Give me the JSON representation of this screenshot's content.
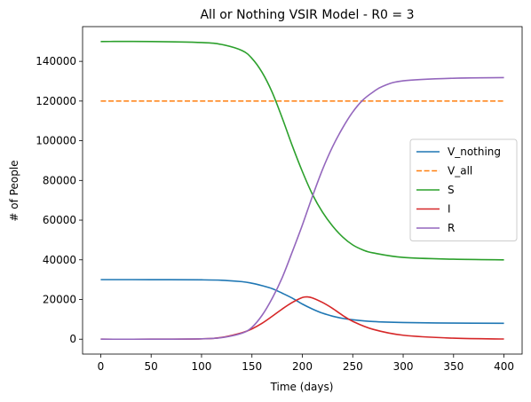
{
  "chart_data": {
    "type": "line",
    "title": "All or Nothing VSIR Model - R0 = 3",
    "xlabel": "Time (days)",
    "ylabel": "# of People",
    "xlim": [
      -18,
      418
    ],
    "ylim": [
      -7500,
      157500
    ],
    "xticks": [
      0,
      50,
      100,
      150,
      200,
      250,
      300,
      350,
      400
    ],
    "yticks": [
      0,
      20000,
      40000,
      60000,
      80000,
      100000,
      120000,
      140000
    ],
    "grid": false,
    "legend": "center-right",
    "series": [
      {
        "name": "V_nothing",
        "color": "#1f77b4",
        "dash": "solid",
        "x": [
          0,
          50,
          100,
          120,
          140,
          150,
          160,
          170,
          180,
          190,
          200,
          210,
          220,
          230,
          240,
          250,
          270,
          300,
          350,
          400
        ],
        "y": [
          30000,
          30000,
          29900,
          29700,
          29000,
          28200,
          27000,
          25500,
          23200,
          20700,
          17700,
          15200,
          13100,
          11600,
          10500,
          9800,
          8900,
          8400,
          8100,
          8000
        ]
      },
      {
        "name": "V_all",
        "color": "#ff7f0e",
        "dash": "dashed",
        "x": [
          0,
          400
        ],
        "y": [
          120000,
          120000
        ]
      },
      {
        "name": "S",
        "color": "#2ca02c",
        "dash": "solid",
        "x": [
          0,
          50,
          100,
          120,
          140,
          150,
          160,
          170,
          180,
          190,
          200,
          210,
          220,
          230,
          240,
          250,
          260,
          270,
          300,
          350,
          400
        ],
        "y": [
          150000,
          150000,
          149500,
          148500,
          145500,
          141500,
          134500,
          124500,
          111500,
          97500,
          84500,
          73000,
          64000,
          57000,
          51500,
          47500,
          45000,
          43500,
          41200,
          40300,
          40000
        ]
      },
      {
        "name": "I",
        "color": "#d62728",
        "dash": "solid",
        "x": [
          0,
          50,
          100,
          120,
          140,
          150,
          160,
          170,
          180,
          190,
          200,
          205,
          210,
          220,
          230,
          240,
          250,
          270,
          300,
          350,
          400
        ],
        "y": [
          0,
          0,
          200,
          900,
          3200,
          5200,
          8000,
          11500,
          15200,
          18500,
          21000,
          21300,
          20800,
          18500,
          15500,
          12000,
          9000,
          5000,
          2000,
          500,
          100
        ]
      },
      {
        "name": "R",
        "color": "#9467bd",
        "dash": "solid",
        "x": [
          0,
          50,
          100,
          120,
          140,
          150,
          160,
          170,
          180,
          190,
          200,
          210,
          220,
          230,
          240,
          250,
          260,
          270,
          280,
          300,
          350,
          400
        ],
        "y": [
          0,
          0,
          200,
          800,
          3000,
          6000,
          12000,
          20500,
          31000,
          44000,
          57500,
          72000,
          85500,
          97000,
          106500,
          114500,
          120500,
          124500,
          127500,
          130200,
          131500,
          131800
        ]
      }
    ]
  }
}
